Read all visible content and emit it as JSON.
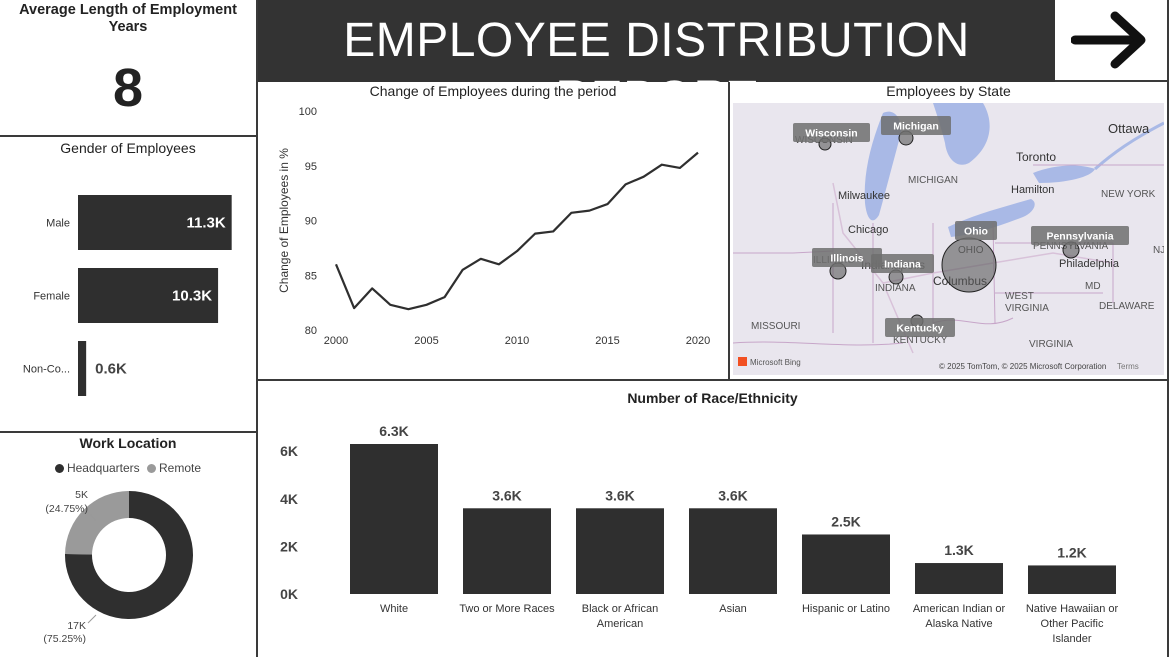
{
  "kpi": {
    "title": "Average Length of Employment Years",
    "value": "8"
  },
  "header": {
    "title": "EMPLOYEE DISTRIBUTION REPORT",
    "arrow_icon": "arrow-right-icon"
  },
  "gender": {
    "title": "Gender of Employees",
    "bars": [
      {
        "label": "Male",
        "value": 11.3,
        "display": "11.3K"
      },
      {
        "label": "Female",
        "value": 10.3,
        "display": "10.3K"
      },
      {
        "label": "Non-Co...",
        "value": 0.6,
        "display": "0.6K"
      }
    ]
  },
  "work_location": {
    "title": "Work Location",
    "legend": [
      {
        "label": "Headquarters",
        "color": "#2f2f2f"
      },
      {
        "label": "Remote",
        "color": "#9a9a9a"
      }
    ],
    "slices": [
      {
        "label": "Headquarters",
        "value": 17,
        "pct": 75.25,
        "display_value": "17K",
        "display_pct": "(75.25%)",
        "color": "#2f2f2f"
      },
      {
        "label": "Remote",
        "value": 5,
        "pct": 24.75,
        "display_value": "5K",
        "display_pct": "(24.75%)",
        "color": "#9a9a9a"
      }
    ]
  },
  "map": {
    "title": "Employees by State",
    "states": [
      {
        "name": "Wisconsin"
      },
      {
        "name": "Michigan"
      },
      {
        "name": "Ohio"
      },
      {
        "name": "Pennsylvania"
      },
      {
        "name": "Illinois"
      },
      {
        "name": "Indiana"
      },
      {
        "name": "Kentucky"
      }
    ],
    "map_labels": [
      "Ottawa",
      "Toronto",
      "Hamilton",
      "NEW YORK",
      "MICHIGAN",
      "Milwaukee",
      "Chicago",
      "ILLINOIS",
      "Indianapolis",
      "INDIANA",
      "OHIO",
      "Columbus",
      "PENNSYLVANIA",
      "Philadelphia",
      "WEST VIRGINIA",
      "VIRGINIA",
      "KENTUCKY",
      "MISSOURI",
      "DELAWARE",
      "MD",
      "WISCONSIN",
      "NJ"
    ],
    "attribution": "© 2025 TomTom, © 2025 Microsoft Corporation",
    "terms": "Terms",
    "bing": "Microsoft Bing"
  },
  "chart_data": [
    {
      "type": "line",
      "title": "Change of Employees during the period",
      "ylabel": "Change of Employees in %",
      "xlabel": "",
      "x": [
        2000,
        2001,
        2002,
        2003,
        2004,
        2005,
        2006,
        2007,
        2008,
        2009,
        2010,
        2011,
        2012,
        2013,
        2014,
        2015,
        2016,
        2017,
        2018,
        2019,
        2020
      ],
      "y": [
        86.0,
        82.0,
        83.8,
        82.3,
        81.9,
        82.3,
        83.0,
        85.5,
        86.5,
        86.0,
        87.2,
        88.8,
        89.0,
        90.7,
        90.9,
        91.5,
        93.3,
        94.0,
        95.1,
        94.8,
        96.2
      ],
      "xlim": [
        2000,
        2020
      ],
      "ylim": [
        80,
        100
      ],
      "xticks": [
        2000,
        2005,
        2010,
        2015,
        2020
      ],
      "yticks": [
        80,
        85,
        90,
        95,
        100
      ],
      "color": "#2f2f2f"
    },
    {
      "type": "bar",
      "title": "Number of Race/Ethnicity",
      "categories": [
        "White",
        "Two or More Races",
        "Black or African American",
        "Asian",
        "Hispanic or Latino",
        "American Indian or Alaska Native",
        "Native Hawaiian or Other Pacific Islander"
      ],
      "category_lines": [
        [
          "White"
        ],
        [
          "Two or More Races"
        ],
        [
          "Black or African",
          "American"
        ],
        [
          "Asian"
        ],
        [
          "Hispanic or Latino"
        ],
        [
          "American Indian or",
          "Alaska Native"
        ],
        [
          "Native Hawaiian or",
          "Other Pacific",
          "Islander"
        ]
      ],
      "values": [
        6.3,
        3.6,
        3.6,
        3.6,
        2.5,
        1.3,
        1.2
      ],
      "data_labels": [
        "6.3K",
        "3.6K",
        "3.6K",
        "3.6K",
        "2.5K",
        "1.3K",
        "1.2K"
      ],
      "ylim": [
        0,
        6.3
      ],
      "yticks": [
        0,
        2,
        4,
        6
      ],
      "ytick_labels": [
        "0K",
        "2K",
        "4K",
        "6K"
      ],
      "color": "#2f2f2f"
    }
  ]
}
